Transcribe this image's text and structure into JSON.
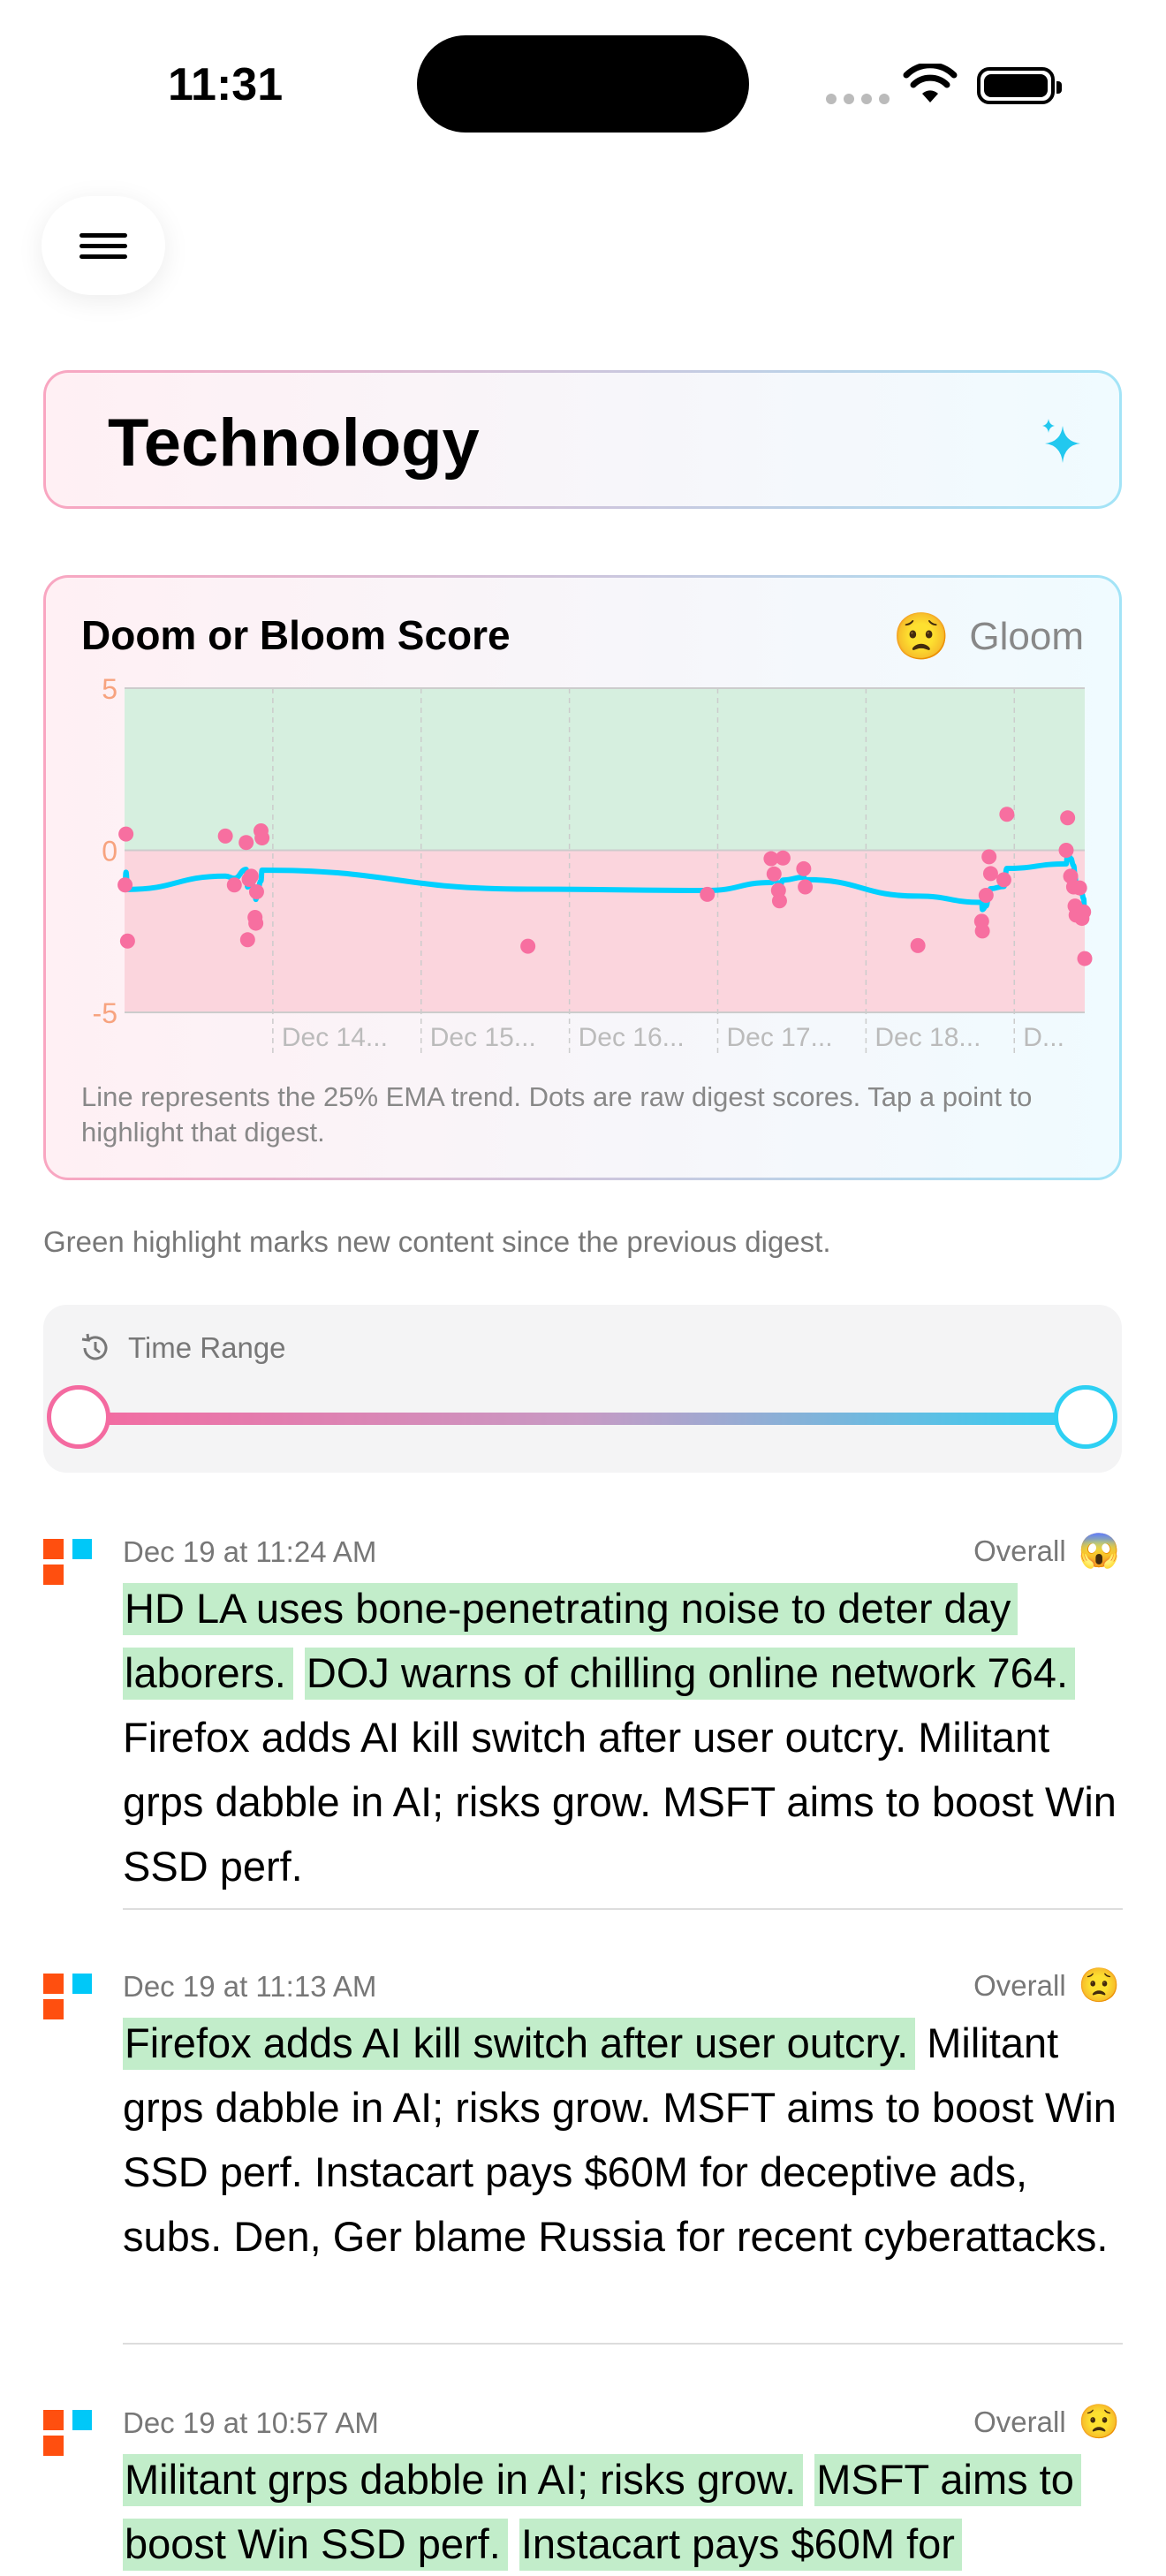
{
  "status_bar": {
    "time": "11:31"
  },
  "header": {
    "menu_icon": "hamburger-icon"
  },
  "category": {
    "title": "Technology",
    "icon": "sparkles-icon"
  },
  "score_card": {
    "title": "Doom or Bloom Score",
    "mood_emoji": "😟",
    "mood_label": "Gloom",
    "footnote": "Line represents the 25% EMA trend. Dots are raw digest scores. Tap a point to highlight that digest."
  },
  "chart_data": {
    "type": "scatter",
    "title": "",
    "ylim": [
      -5,
      5
    ],
    "yticks": [
      "5",
      "0",
      "-5"
    ],
    "xlim": [
      "Dec 13 00:00",
      "Dec 19 11:24"
    ],
    "xtick_labels": [
      "Dec 14...",
      "Dec 15...",
      "Dec 16...",
      "Dec 17...",
      "Dec 18...",
      "D..."
    ],
    "ema_alpha": 0.25,
    "colors": {
      "positive_zone": "#d6efdf",
      "negative_zone": "#fbd5dd",
      "dots": "#f76fa0",
      "trend": "#00d0ff",
      "axis_labels": "#f7a37f"
    },
    "points": [
      [
        "Dec 13 00:05",
        -1.07
      ],
      [
        "Dec 13 00:14",
        0.5
      ],
      [
        "Dec 13 00:29",
        -2.8
      ],
      [
        "Dec 13 16:19",
        0.44
      ],
      [
        "Dec 13 17:46",
        -1.07
      ],
      [
        "Dec 13 19:41",
        0.24
      ],
      [
        "Dec 13 19:55",
        -2.76
      ],
      [
        "Dec 13 20:10",
        -0.9
      ],
      [
        "Dec 13 20:30",
        -0.8
      ],
      [
        "Dec 13 21:07",
        -2.07
      ],
      [
        "Dec 13 21:15",
        -2.25
      ],
      [
        "Dec 13 21:22",
        -1.28
      ],
      [
        "Dec 13 22:05",
        0.6
      ],
      [
        "Dec 13 22:15",
        0.38
      ],
      [
        "Dec 15 17:17",
        -2.96
      ],
      [
        "Dec 16 22:19",
        -1.36
      ],
      [
        "Dec 17 08:38",
        -0.26
      ],
      [
        "Dec 17 09:07",
        -0.73
      ],
      [
        "Dec 17 09:50",
        -1.24
      ],
      [
        "Dec 17 10:00",
        -1.56
      ],
      [
        "Dec 17 10:34",
        -0.24
      ],
      [
        "Dec 17 13:55",
        -0.57
      ],
      [
        "Dec 17 14:10",
        -1.13
      ],
      [
        "Dec 18 08:24",
        -2.94
      ],
      [
        "Dec 18 18:43",
        -2.19
      ],
      [
        "Dec 18 18:50",
        -2.49
      ],
      [
        "Dec 18 19:26",
        -1.39
      ],
      [
        "Dec 18 19:55",
        -0.2
      ],
      [
        "Dec 18 20:10",
        -0.72
      ],
      [
        "Dec 18 22:19",
        -0.91
      ],
      [
        "Dec 18 22:48",
        1.11
      ],
      [
        "Dec 19 08:24",
        0.0
      ],
      [
        "Dec 19 08:38",
        1.0
      ],
      [
        "Dec 19 09:07",
        -0.8
      ],
      [
        "Dec 19 09:36",
        -1.13
      ],
      [
        "Dec 19 09:50",
        -1.72
      ],
      [
        "Dec 19 10:00",
        -2.0
      ],
      [
        "Dec 19 10:34",
        -1.16
      ],
      [
        "Dec 19 10:57",
        -2.1
      ],
      [
        "Dec 19 11:13",
        -1.9
      ],
      [
        "Dec 19 11:24",
        -3.34
      ]
    ]
  },
  "highlight_note": "Green highlight marks new content since the previous digest.",
  "time_range": {
    "label": "Time Range",
    "icon": "history-icon",
    "start_fraction": 0,
    "end_fraction": 1
  },
  "digests": [
    {
      "date": "Dec 19 at 11:24 AM",
      "overall_label": "Overall",
      "emoji": "😱",
      "segments": [
        {
          "text": "HD LA uses bone-penetrating noise to deter day laborers.",
          "new": true
        },
        {
          "text": "DOJ warns of chilling online network 764.",
          "new": true
        },
        {
          "text": "Firefox adds AI kill switch after user outcry. Militant grps dabble in AI; risks grow. MSFT aims to boost Win SSD perf.",
          "new": false
        }
      ]
    },
    {
      "date": "Dec 19 at 11:13 AM",
      "overall_label": "Overall",
      "emoji": "😟",
      "segments": [
        {
          "text": "Firefox adds AI kill switch after user outcry.",
          "new": true
        },
        {
          "text": "Militant grps dabble in AI; risks grow. MSFT aims to boost Win SSD perf. Instacart pays $60M for deceptive ads, subs. Den, Ger blame Russia for recent cyberattacks.",
          "new": false
        }
      ]
    },
    {
      "date": "Dec 19 at 10:57 AM",
      "overall_label": "Overall",
      "emoji": "😟",
      "segments": [
        {
          "text": "Militant grps dabble in AI; risks grow.",
          "new": true
        },
        {
          "text": "MSFT aims to boost Win SSD perf.",
          "new": true
        },
        {
          "text": "Instacart pays $60M for",
          "new": true
        }
      ]
    }
  ]
}
